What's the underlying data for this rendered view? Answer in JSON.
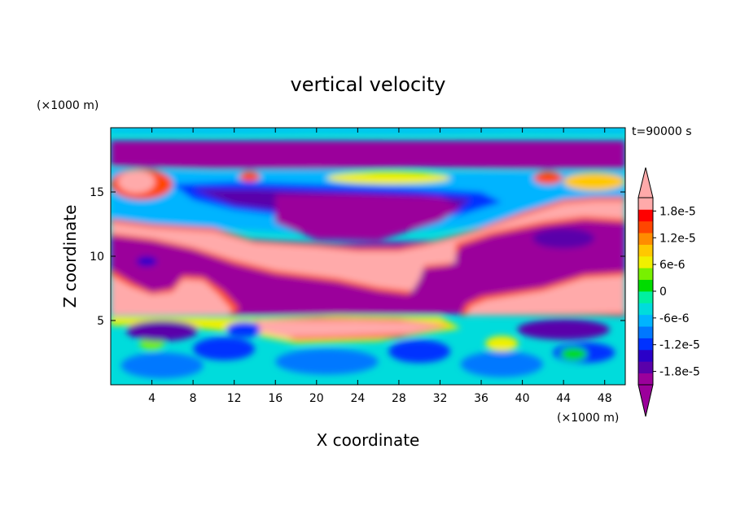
{
  "chart_data": {
    "type": "heatmap",
    "title": "vertical velocity",
    "xlabel": "X coordinate",
    "ylabel": "Z coordinate",
    "x_unit": "(×1000 m)",
    "y_unit": "(×1000 m)",
    "time_label": "t=90000 s",
    "xlim": [
      0,
      50
    ],
    "ylim": [
      0,
      20
    ],
    "x_ticks": [
      4,
      8,
      12,
      16,
      20,
      24,
      28,
      32,
      36,
      40,
      44,
      48
    ],
    "y_ticks": [
      5,
      10,
      15
    ],
    "colorbar": {
      "min": -2.1e-05,
      "max": 2.1e-05,
      "step": 3e-06,
      "labels": [
        "1.8e-5",
        "1.2e-5",
        "6e-6",
        "0",
        "-6e-6",
        "-1.2e-5",
        "-1.8e-5"
      ],
      "label_values": [
        1.8e-05,
        1.2e-05,
        6e-06,
        0,
        -6e-06,
        -1.2e-05,
        -1.8e-05
      ],
      "extend": "both",
      "colors": [
        "#9b009b",
        "#5a00aa",
        "#2a00c8",
        "#0032ff",
        "#0078ff",
        "#00b4ff",
        "#00dcdc",
        "#00f0a0",
        "#00dc00",
        "#78f000",
        "#f0f000",
        "#ffc800",
        "#ff8c00",
        "#ff4600",
        "#ff0000",
        "#ffaaaa"
      ]
    },
    "grid": false
  }
}
